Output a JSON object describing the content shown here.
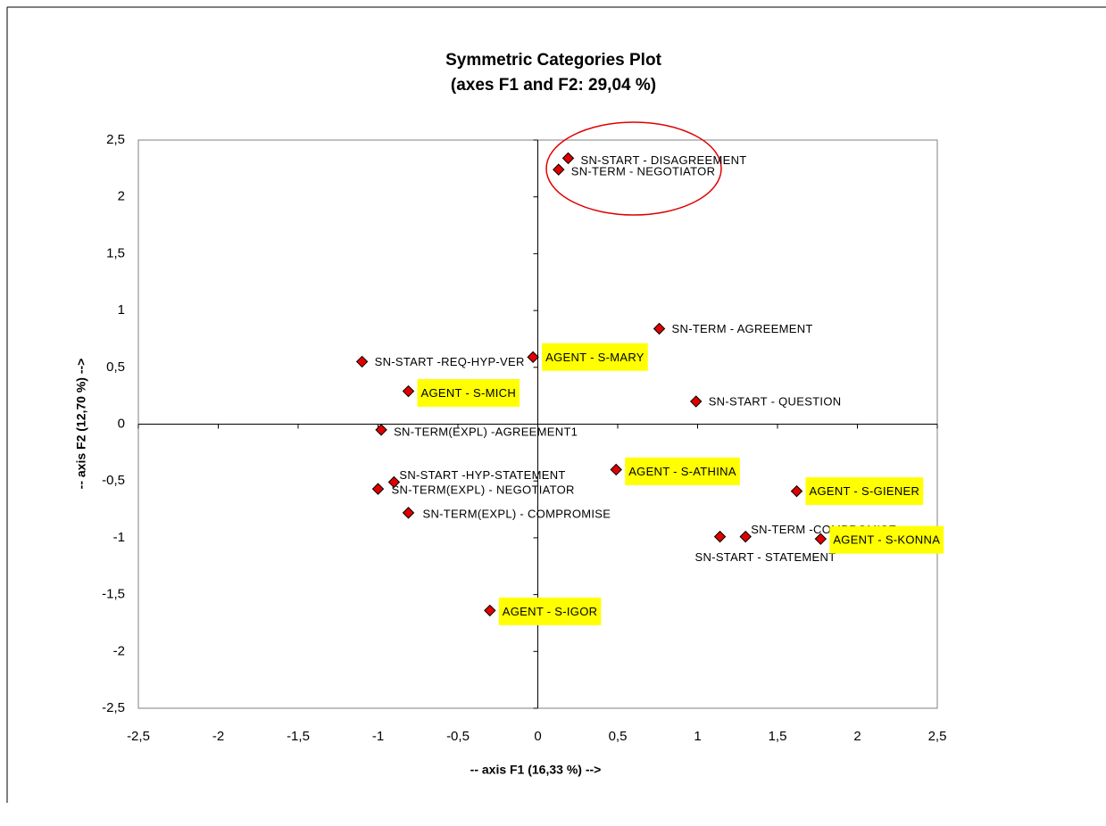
{
  "chart_data": {
    "type": "scatter",
    "title": "Symmetric Categories Plot",
    "subtitle": "(axes F1 and F2: 29,04 %)",
    "xlabel": "-- axis F1 (16,33 %) -->",
    "ylabel": "-- axis F2 (12,70 %) -->",
    "color": "#e00000",
    "highlight_color": "#ffff00",
    "xlim": [
      -2.5,
      2.5
    ],
    "ylim": [
      -2.5,
      2.5
    ],
    "xticks": [
      {
        "value": -2.5,
        "label": "-2,5"
      },
      -2,
      {
        "value": -1.5,
        "label": "-1,5"
      },
      -1,
      {
        "value": -0.5,
        "label": "-0,5"
      },
      0,
      {
        "value": 0.5,
        "label": "0,5"
      },
      1,
      {
        "value": 1.5,
        "label": "1,5"
      },
      2,
      {
        "value": 2.5,
        "label": "2,5"
      }
    ],
    "yticks": [
      {
        "value": -2.5,
        "label": "-2,5"
      },
      -2,
      {
        "value": -1.5,
        "label": "-1,5"
      },
      -1,
      {
        "value": -0.5,
        "label": "-0,5"
      },
      0,
      {
        "value": 0.5,
        "label": "0,5"
      },
      1,
      {
        "value": 1.5,
        "label": "1,5"
      },
      2,
      {
        "value": 2.5,
        "label": "2,5"
      }
    ],
    "points": [
      {
        "label": "SN-START - DISAGREEMENT",
        "x": 0.19,
        "y": 2.34,
        "highlighted": false
      },
      {
        "label": "SN-TERM - NEGOTIATOR",
        "x": 0.13,
        "y": 2.24,
        "highlighted": false
      },
      {
        "label": "SN-TERM - AGREEMENT",
        "x": 0.76,
        "y": 0.84,
        "highlighted": false
      },
      {
        "label": "SN-START -REQ-HYP-VER",
        "x": -1.1,
        "y": 0.55,
        "highlighted": false
      },
      {
        "label": "AGENT - S-MARY",
        "x": -0.03,
        "y": 0.59,
        "highlighted": true
      },
      {
        "label": "AGENT - S-MICH",
        "x": -0.81,
        "y": 0.29,
        "highlighted": true
      },
      {
        "label": "SN-START - QUESTION",
        "x": 0.99,
        "y": 0.2,
        "highlighted": false
      },
      {
        "label": "SN-TERM(EXPL) -AGREEMENT1",
        "x": -0.98,
        "y": -0.05,
        "highlighted": false
      },
      {
        "label": "AGENT - S-ATHINA",
        "x": 0.49,
        "y": -0.4,
        "highlighted": true
      },
      {
        "label": "SN-START -HYP-STATEMENT",
        "x": -0.9,
        "y": -0.51,
        "highlighted": false
      },
      {
        "label": "SN-TERM(EXPL) - NEGOTIATOR",
        "x": -1.0,
        "y": -0.57,
        "highlighted": false
      },
      {
        "label": "AGENT - S-GIENER",
        "x": 1.62,
        "y": -0.59,
        "highlighted": true
      },
      {
        "label": "SN-TERM(EXPL) - COMPROMISE",
        "x": -0.81,
        "y": -0.78,
        "highlighted": false
      },
      {
        "label": "SN-TERM -COMPROMISE",
        "x": 1.3,
        "y": -0.99,
        "highlighted": false
      },
      {
        "label": "SN-START - STATEMENT",
        "x": 1.14,
        "y": -0.99,
        "highlighted": false
      },
      {
        "label": "AGENT - S-KONNA",
        "x": 1.77,
        "y": -1.01,
        "highlighted": true
      },
      {
        "label": "AGENT - S-IGOR",
        "x": -0.3,
        "y": -1.64,
        "highlighted": true
      }
    ]
  }
}
